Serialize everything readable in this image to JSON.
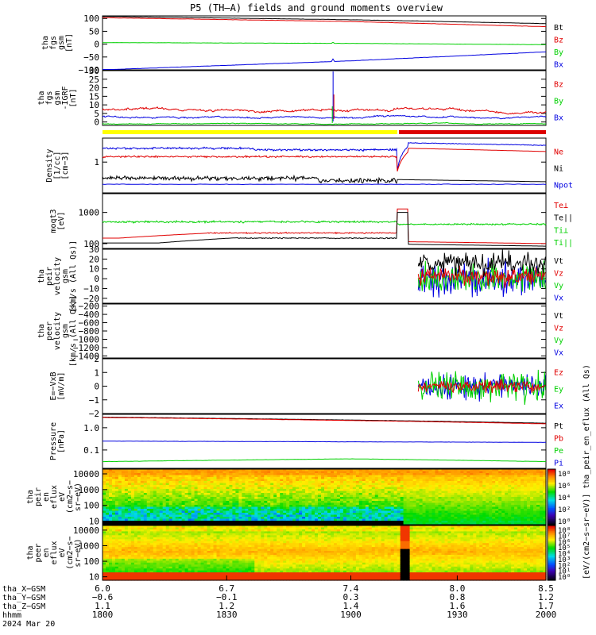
{
  "title": "P5 (TH–A) fields and ground moments overview",
  "colors": {
    "black": "#000000",
    "red": "#e00000",
    "green": "#00d000",
    "blue": "#0000e0",
    "bar_yellow": "#ffff00",
    "bar_red": "#dd0000"
  },
  "chart_data": [
    {
      "type": "line",
      "id": "fgs_full",
      "ylabel": [
        "tha",
        "fgs",
        "gsm",
        "[nT]"
      ],
      "yticks": [
        "100",
        "50",
        "0",
        "−50",
        "−100"
      ],
      "ylim": [
        -100,
        110
      ],
      "legend": [
        {
          "label": "Bt",
          "color": "#000000"
        },
        {
          "label": "Bz",
          "color": "#e00000"
        },
        {
          "label": "By",
          "color": "#00d000"
        },
        {
          "label": "Bx",
          "color": "#0000e0"
        }
      ],
      "series": [
        {
          "name": "Bt",
          "x": [
            6.0,
            7.4,
            8.5
          ],
          "y": [
            108,
            95,
            80
          ]
        },
        {
          "name": "Bz",
          "x": [
            6.0,
            7.4,
            8.5
          ],
          "y": [
            103,
            88,
            68
          ]
        },
        {
          "name": "By",
          "x": [
            6.0,
            7.4,
            8.5
          ],
          "y": [
            6,
            3,
            -2
          ]
        },
        {
          "name": "Bx",
          "x": [
            6.0,
            7.4,
            8.5
          ],
          "y": [
            -100,
            -65,
            -30
          ]
        }
      ]
    },
    {
      "type": "line",
      "id": "fgs_detrend",
      "ylabel": [
        "tha",
        "fgs",
        "gsm",
        "-IGRF",
        "[nT]"
      ],
      "yticks": [
        "30",
        "25",
        "20",
        "15",
        "10",
        "5",
        "0"
      ],
      "ylim": [
        -2,
        30
      ],
      "legend": [
        {
          "label": "Bz",
          "color": "#e00000"
        },
        {
          "label": "By",
          "color": "#00d000"
        },
        {
          "label": "Bx",
          "color": "#0000e0"
        }
      ],
      "series": [
        {
          "name": "Bz",
          "mean": 7,
          "noise": 1.2
        },
        {
          "name": "By",
          "mean": -1,
          "noise": 0.4
        },
        {
          "name": "Bx",
          "mean": 3,
          "noise": 0.8
        }
      ],
      "spike_x": 7.3
    },
    {
      "type": "line",
      "id": "density",
      "ylabel": [
        "Density",
        "[1/cc]",
        "[cm−3]"
      ],
      "yticks": [
        "1"
      ],
      "log": true,
      "ylim": [
        0.1,
        6
      ],
      "legend": [
        {
          "label": "Ne",
          "color": "#e00000"
        },
        {
          "label": "Ni",
          "color": "#000000"
        },
        {
          "label": "Npot",
          "color": "#0000e0"
        }
      ]
    },
    {
      "type": "line",
      "id": "temperature",
      "ylabel": [
        "moqt3",
        "[eV]"
      ],
      "yticks": [
        "1000",
        "100"
      ],
      "log": true,
      "ylim": [
        70,
        4000
      ],
      "legend": [
        {
          "label": "Te⊥",
          "color": "#e00000"
        },
        {
          "label": "Te||",
          "color": "#000000"
        },
        {
          "label": "Ti⊥",
          "color": "#00d000"
        },
        {
          "label": "Ti||",
          "color": "#00d000"
        }
      ]
    },
    {
      "type": "line",
      "id": "peir_velocity",
      "ylabel": [
        "tha",
        "peir",
        "velocity",
        "gsm",
        "[km/s (All Qs)]"
      ],
      "yticks": [
        "30",
        "20",
        "10",
        "0",
        "−10",
        "−20"
      ],
      "ylim": [
        -25,
        30
      ],
      "legend": [
        {
          "label": "Vt",
          "color": "#000000"
        },
        {
          "label": "Vz",
          "color": "#e00000"
        },
        {
          "label": "Vy",
          "color": "#00d000"
        },
        {
          "label": "Vx",
          "color": "#0000e0"
        }
      ]
    },
    {
      "type": "line",
      "id": "peer_velocity",
      "ylabel": [
        "tha",
        "peer",
        "velocity",
        "gsm",
        "[km/s (All Qs)]"
      ],
      "yticks": [
        "−200",
        "−400",
        "−600",
        "−800",
        "−1000",
        "−1200",
        "−1400"
      ],
      "ylim": [
        -1450,
        -150
      ],
      "legend": [
        {
          "label": "Vt",
          "color": "#000000"
        },
        {
          "label": "Vz",
          "color": "#e00000"
        },
        {
          "label": "Vy",
          "color": "#00d000"
        },
        {
          "label": "Vx",
          "color": "#0000e0"
        }
      ]
    },
    {
      "type": "line",
      "id": "efield",
      "ylabel": [
        "E=−VxB",
        "[mV/m]"
      ],
      "yticks": [
        "2",
        "1",
        "0",
        "−1",
        "−2"
      ],
      "ylim": [
        -2,
        2
      ],
      "legend": [
        {
          "label": "Ez",
          "color": "#e00000"
        },
        {
          "label": "Ey",
          "color": "#00d000"
        },
        {
          "label": "Ex",
          "color": "#0000e0"
        }
      ]
    },
    {
      "type": "line",
      "id": "pressure",
      "ylabel": [
        "Pressure",
        "[nPa]"
      ],
      "yticks": [
        "1.0",
        "0.1"
      ],
      "log": true,
      "ylim": [
        0.015,
        4
      ],
      "legend": [
        {
          "label": "Pt",
          "color": "#000000"
        },
        {
          "label": "Pb",
          "color": "#e00000"
        },
        {
          "label": "Pe",
          "color": "#00d000"
        },
        {
          "label": "Pi",
          "color": "#0000e0"
        }
      ],
      "series": [
        {
          "name": "Pt",
          "x": [
            6.0,
            8.5
          ],
          "y": [
            3.0,
            1.6
          ]
        },
        {
          "name": "Pb",
          "x": [
            6.0,
            8.5
          ],
          "y": [
            2.9,
            1.5
          ]
        },
        {
          "name": "Pi",
          "x": [
            6.0,
            8.5
          ],
          "y": [
            0.25,
            0.22
          ]
        },
        {
          "name": "Pe",
          "x": [
            6.0,
            7.4,
            8.5
          ],
          "y": [
            0.03,
            0.04,
            0.03
          ]
        }
      ]
    },
    {
      "type": "heatmap",
      "id": "peir_spec",
      "ylabel": [
        "tha",
        "peir",
        "en",
        "eflux",
        "eV",
        "(cm2−s−",
        "sr−eV)"
      ],
      "yticks": [
        "10000",
        "1000",
        "100",
        "10"
      ],
      "log": true,
      "ylim": [
        6,
        20000
      ],
      "colorbar_ticks": [
        "10⁸",
        "10⁶",
        "10⁴",
        "10²",
        "10⁰"
      ]
    },
    {
      "type": "heatmap",
      "id": "peer_spec",
      "ylabel": [
        "tha",
        "peer",
        "en",
        "eflux",
        "eV",
        "(cm2−s−",
        "sr−eV)"
      ],
      "yticks": [
        "10000",
        "1000",
        "100",
        "10"
      ],
      "log": true,
      "ylim": [
        6,
        20000
      ],
      "colorbar_ticks": [
        "10⁸",
        "10⁷",
        "10⁶",
        "10⁵",
        "10⁴",
        "10³",
        "10²",
        "10¹",
        "10⁰"
      ]
    }
  ],
  "colorbar_label": "[eV/(cm2−s−sr−eV)] tha_peir_en_eflux (All Qs)",
  "xaxis": {
    "row_labels": [
      "tha_X−GSM",
      "tha_Y−GSM",
      "tha_Z−GSM",
      "hhmm",
      "2024 Mar 20"
    ],
    "columns": [
      [
        "6.0",
        "−0.6",
        "1.1",
        "1800"
      ],
      [
        "6.7",
        "−0.1",
        "1.2",
        "1830"
      ],
      [
        "7.4",
        "0.3",
        "1.4",
        "1900"
      ],
      [
        "8.0",
        "0.8",
        "1.6",
        "1930"
      ],
      [
        "8.5",
        "1.2",
        "1.7",
        "2000"
      ]
    ]
  }
}
